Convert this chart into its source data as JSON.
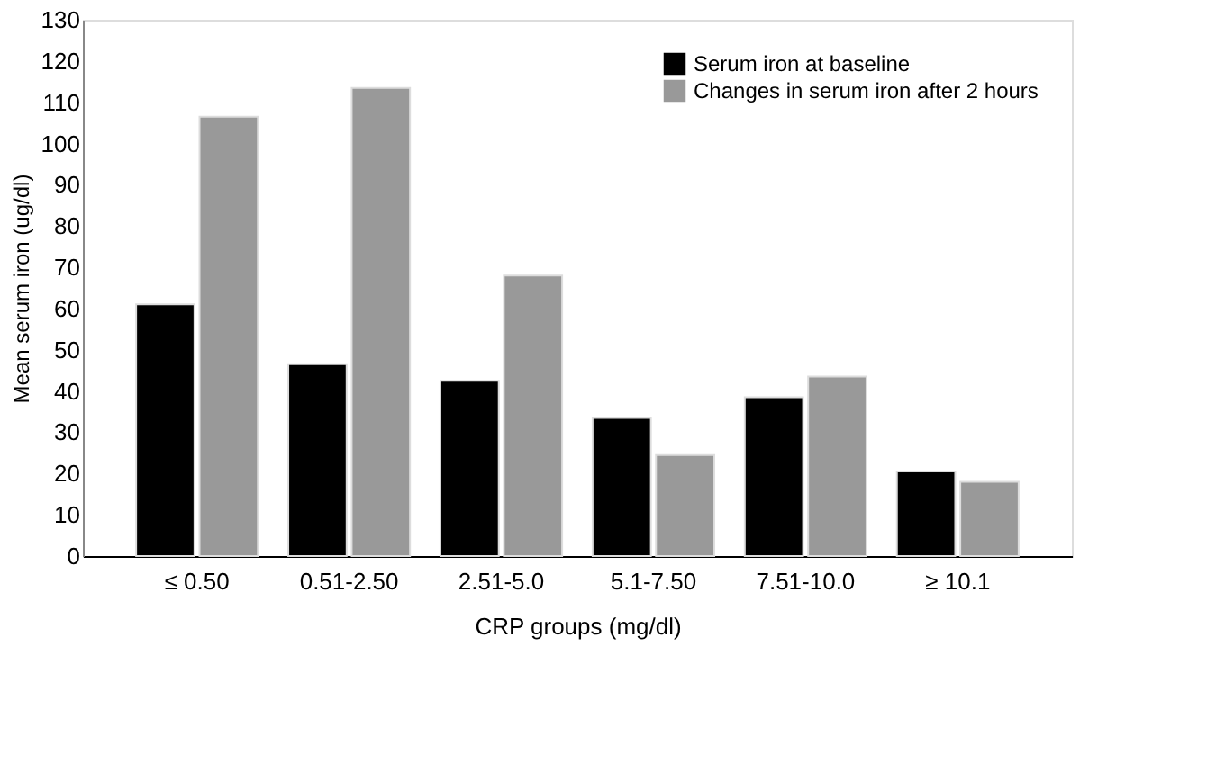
{
  "chart_data": {
    "type": "bar",
    "xlabel": "CRP groups (mg/dl)",
    "ylabel": "Mean serum iron (ug/dl)",
    "categories": [
      "≤ 0.50",
      "0.51-2.50",
      "2.51-5.0",
      "5.1-7.50",
      "7.51-10.0",
      "≥ 10.1"
    ],
    "series": [
      {
        "name": "Serum iron at baseline",
        "color": "#000000",
        "values": [
          61,
          46.5,
          42.5,
          33.5,
          38.5,
          20.5
        ]
      },
      {
        "name": "Changes in serum iron after 2 hours",
        "color": "#999999",
        "values": [
          106.5,
          113.5,
          68,
          24.5,
          43.5,
          18
        ]
      }
    ],
    "ylim": [
      0,
      130
    ],
    "yticks": [
      0,
      10,
      20,
      30,
      40,
      50,
      60,
      70,
      80,
      90,
      100,
      110,
      120,
      130
    ],
    "grid": false,
    "legend": "top right"
  }
}
